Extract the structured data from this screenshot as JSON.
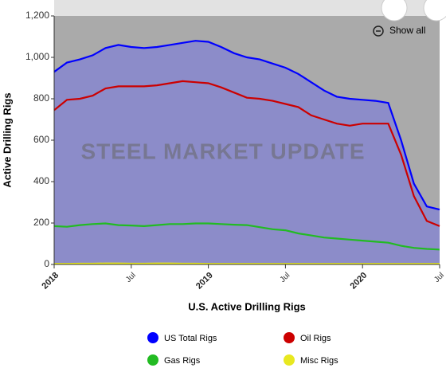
{
  "chart_data": {
    "type": "area-line",
    "x_axis_label": "U.S. Active Drilling Rigs",
    "y_axis_label": "Active Drilling Rigs",
    "watermark": "STEEL MARKET UPDATE",
    "button": "Show all",
    "x": [
      "2018-01",
      "2018-02",
      "2018-03",
      "2018-04",
      "2018-05",
      "2018-06",
      "2018-07",
      "2018-08",
      "2018-09",
      "2018-10",
      "2018-11",
      "2018-12",
      "2019-01",
      "2019-02",
      "2019-03",
      "2019-04",
      "2019-05",
      "2019-06",
      "2019-07",
      "2019-08",
      "2019-09",
      "2019-10",
      "2019-11",
      "2019-12",
      "2020-01",
      "2020-02",
      "2020-03",
      "2020-04",
      "2020-05",
      "2020-06",
      "2020-07"
    ],
    "xlim": [
      "2018-01",
      "2020-07"
    ],
    "xticks": [
      {
        "value": "2018-01",
        "label": "2018"
      },
      {
        "value": "2018-07",
        "label": "Jul"
      },
      {
        "value": "2019-01",
        "label": "2019"
      },
      {
        "value": "2019-07",
        "label": "Jul"
      },
      {
        "value": "2020-01",
        "label": "2020"
      },
      {
        "value": "2020-07",
        "label": "Jul"
      }
    ],
    "ylim": [
      0,
      1200
    ],
    "yticks": [
      0,
      200,
      400,
      600,
      800,
      {
        "value": 1000,
        "label": "1,000"
      },
      {
        "value": 1200,
        "label": "1,200"
      }
    ],
    "series": [
      {
        "name": "US Total Rigs",
        "color": "#0000ff",
        "fill": "#8c8cc9",
        "values": [
          930,
          975,
          990,
          1010,
          1045,
          1060,
          1050,
          1045,
          1050,
          1060,
          1070,
          1080,
          1075,
          1050,
          1020,
          1000,
          990,
          970,
          950,
          920,
          880,
          840,
          810,
          800,
          795,
          790,
          780,
          600,
          390,
          280,
          265
        ]
      },
      {
        "name": "Oil Rigs",
        "color": "#cc0000",
        "values": [
          745,
          795,
          800,
          815,
          850,
          860,
          860,
          860,
          865,
          875,
          885,
          880,
          875,
          855,
          830,
          805,
          800,
          790,
          775,
          760,
          720,
          700,
          680,
          670,
          680,
          680,
          680,
          530,
          330,
          210,
          185
        ]
      },
      {
        "name": "Gas Rigs",
        "color": "#22bb22",
        "values": [
          185,
          182,
          190,
          195,
          198,
          190,
          188,
          185,
          190,
          195,
          195,
          198,
          198,
          195,
          192,
          190,
          180,
          170,
          165,
          150,
          140,
          130,
          125,
          120,
          115,
          110,
          105,
          90,
          80,
          75,
          72
        ]
      },
      {
        "name": "Misc Rigs",
        "color": "#e8e820",
        "values": [
          3,
          3,
          4,
          4,
          5,
          5,
          4,
          4,
          5,
          5,
          4,
          4,
          3,
          3,
          3,
          3,
          3,
          3,
          3,
          3,
          3,
          3,
          3,
          3,
          3,
          3,
          3,
          3,
          3,
          3,
          3
        ]
      }
    ]
  }
}
